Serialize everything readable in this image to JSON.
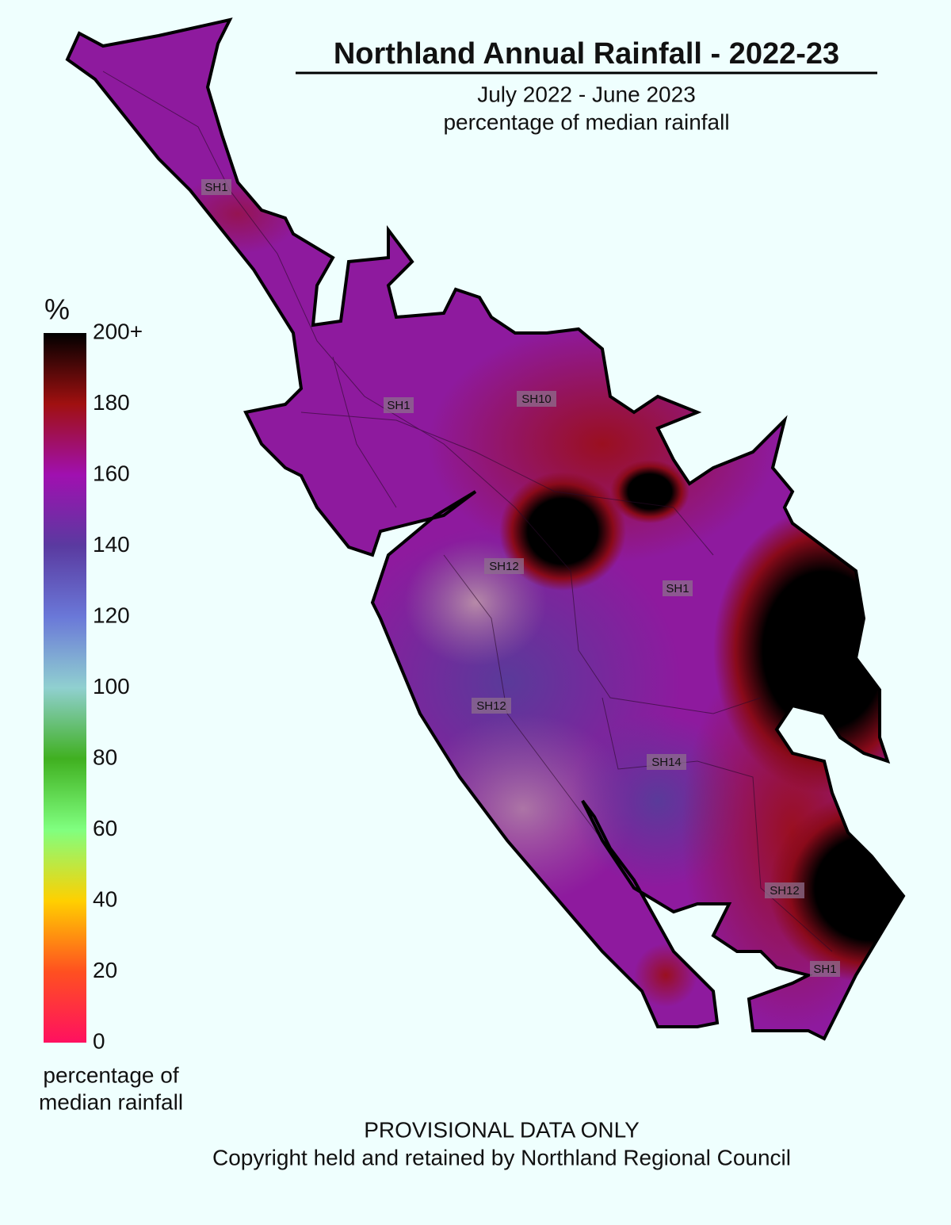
{
  "header": {
    "title": "Northland Annual Rainfall - 2022-23",
    "subtitle": [
      "July 2022 - June 2023",
      "percentage of median rainfall"
    ]
  },
  "legend": {
    "unit": "%",
    "ticks": [
      {
        "value": 200,
        "label": "200+"
      },
      180,
      160,
      140,
      120,
      100,
      80,
      60,
      40,
      20,
      0
    ],
    "colors": [
      "#000000",
      "#a01010",
      "#a010b0",
      "#5a3aa0",
      "#6a78d8",
      "#90d0d0",
      "#40b020",
      "#80ff80",
      "#ffd000",
      "#ff5020",
      "#ff1060"
    ],
    "caption": [
      "percentage of",
      "median rainfall"
    ]
  },
  "road_labels": [
    "SH1",
    "SH1",
    "SH10",
    "SH12",
    "SH1",
    "SH12",
    "SH14",
    "SH12",
    "SH1"
  ],
  "footer": [
    "PROVISIONAL DATA ONLY",
    "Copyright held and retained by Northland Regional Council"
  ]
}
